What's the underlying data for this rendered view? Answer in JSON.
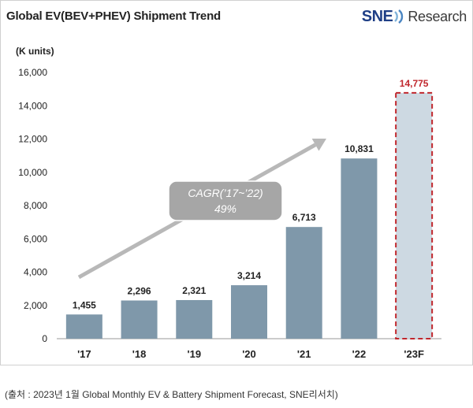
{
  "title": "Global EV(BEV+PHEV)  Shipment Trend",
  "logo": {
    "brand": "SNE",
    "rest": "Research"
  },
  "unit_label": "(K units)",
  "source": "(출처 : 2023년 1월 Global Monthly EV & Battery Shipment Forecast, SNE리서치)",
  "annotation": {
    "line1": "CAGR(’17~’22)",
    "line2": "49%"
  },
  "colors": {
    "bar": "#7f98aa",
    "forecast_fill": "#cdd9e2",
    "forecast_border": "#c0272d",
    "forecast_label": "#c0272d",
    "arrow": "#b8b8b8",
    "annotation_bg": "#a6a6a6"
  },
  "chart_data": {
    "type": "bar",
    "title": "Global EV(BEV+PHEV)  Shipment Trend",
    "ylabel": "(K units)",
    "xlabel": "",
    "categories": [
      "'17",
      "'18",
      "'19",
      "'20",
      "'21",
      "'22",
      "'23F"
    ],
    "values": [
      1455,
      2296,
      2321,
      3214,
      6713,
      10831,
      14775
    ],
    "labels": [
      "1,455",
      "2,296",
      "2,321",
      "3,214",
      "6,713",
      "10,831",
      "14,775"
    ],
    "forecast": [
      false,
      false,
      false,
      false,
      false,
      false,
      true
    ],
    "ylim": [
      0,
      16000
    ],
    "yticks": [
      0,
      2000,
      4000,
      6000,
      8000,
      10000,
      12000,
      14000,
      16000
    ],
    "ytick_labels": [
      "0",
      "2,000",
      "4,000",
      "6,000",
      "8,000",
      "10,000",
      "12,000",
      "14,000",
      "16,000"
    ],
    "grid": false
  }
}
